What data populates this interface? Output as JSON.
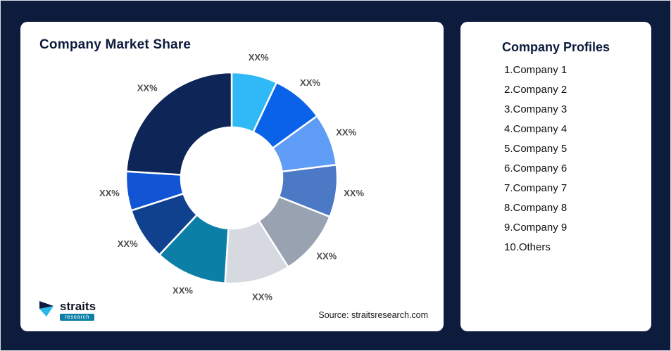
{
  "page": {
    "background_color": "#0D1B3D"
  },
  "market_share_card": {
    "title": "Company Market Share",
    "source_text": "Source: straitsresearch.com",
    "logo": {
      "name": "straits",
      "sub": "research"
    }
  },
  "profiles": {
    "title": "Company Profiles",
    "items": [
      "1.Company 1",
      "2.Company 2",
      "3.Company 3",
      "4.Company 4",
      "5.Company 5",
      "6.Company 6",
      "7.Company 7",
      "8.Company 8",
      "9.Company 9",
      "10.Others"
    ]
  },
  "chart_data": {
    "type": "pie",
    "donut": true,
    "title": "Company Market Share",
    "start_angle_deg": 0,
    "direction": "clockwise",
    "legend": "none",
    "labels": [
      "XX%",
      "XX%",
      "XX%",
      "XX%",
      "XX%",
      "XX%",
      "XX%",
      "XX%",
      "XX%",
      "XX%"
    ],
    "values": [
      7,
      8,
      8,
      8,
      10,
      10,
      11,
      8,
      6,
      24
    ],
    "colors": [
      "#2FB9F6",
      "#0A62E8",
      "#5F9CF6",
      "#4C79C5",
      "#99A2B1",
      "#D6DAE0",
      "#0C7FA6",
      "#10418F",
      "#1155D4",
      "#0D2557"
    ],
    "inner_radius_ratio": 0.48,
    "segment_gap_color": "#FFFFFF"
  }
}
